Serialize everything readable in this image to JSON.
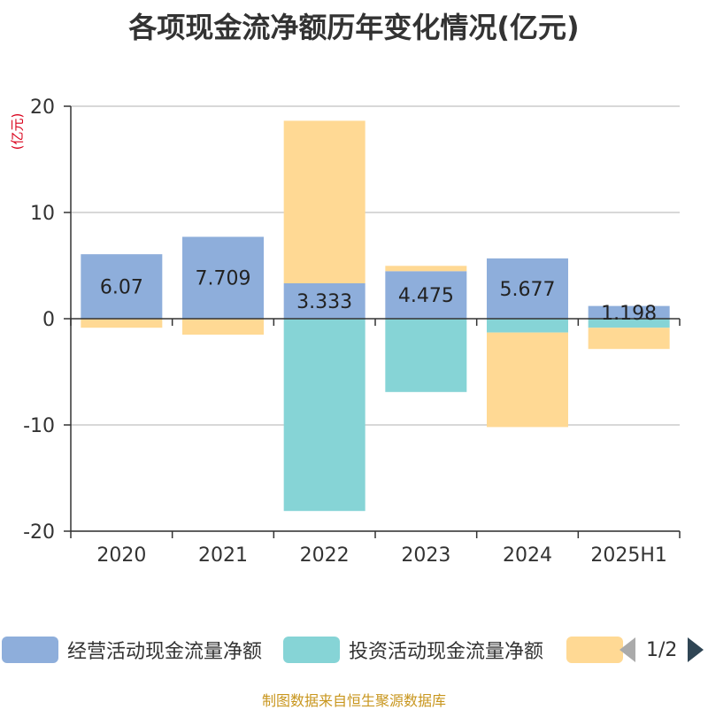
{
  "title": "各项现金流净额历年变化情况(亿元)",
  "unit_label": "(亿元)",
  "source": "制图数据来自恒生聚源数据库",
  "legend": {
    "pager_text": "1/2"
  },
  "colors": {
    "operating": "#8eaedb",
    "investing": "#86d4d6",
    "financing": "#ffd994"
  },
  "chart_data": {
    "type": "bar",
    "stacked": true,
    "categories": [
      "2020",
      "2021",
      "2022",
      "2023",
      "2024",
      "2025H1"
    ],
    "ylim": [
      -20,
      20
    ],
    "yticks": [
      20,
      10,
      0,
      -10,
      -20
    ],
    "grid": true,
    "legend_position": "bottom",
    "series": [
      {
        "name": "经营活动现金流量净额",
        "values": [
          6.07,
          7.709,
          3.333,
          4.475,
          5.677,
          1.198
        ],
        "labels": [
          "6.07",
          "7.709",
          "3.333",
          "4.475",
          "5.677",
          "1.198"
        ]
      },
      {
        "name": "投资活动现金流量净额",
        "values": [
          0,
          0,
          -18.1,
          -6.9,
          -1.3,
          -0.85
        ]
      },
      {
        "name": "",
        "values": [
          -0.85,
          -1.5,
          15.3,
          0.5,
          -8.9,
          -2.0
        ]
      }
    ]
  }
}
